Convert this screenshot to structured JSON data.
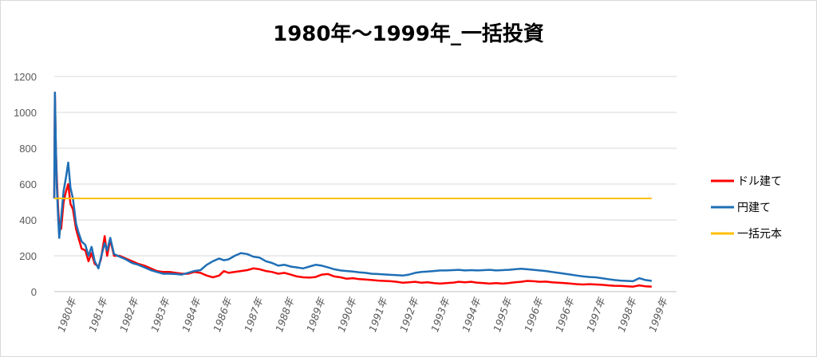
{
  "chart_data": {
    "type": "line",
    "title": "1980年～1999年_一括投資",
    "ylim": [
      0,
      1200
    ],
    "yticks": [
      "0",
      "200",
      "400",
      "600",
      "800",
      "1000",
      "1200"
    ],
    "categories": [
      "1980年",
      "1981年",
      "1982年",
      "1983年",
      "1984年",
      "1986年",
      "1987年",
      "1988年",
      "1989年",
      "1990年",
      "1991年",
      "1992年",
      "1993年",
      "1994年",
      "1995年",
      "1996年",
      "1996年",
      "1997年",
      "1998年",
      "1999年"
    ],
    "grid": true,
    "legend_position": "right",
    "series": [
      {
        "name": "ドル建て",
        "color": "#ff0000",
        "values": [
          [
            0,
            520
          ],
          [
            0.02,
            1110
          ],
          [
            0.05,
            800
          ],
          [
            0.08,
            650
          ],
          [
            0.12,
            480
          ],
          [
            0.16,
            360
          ],
          [
            0.22,
            350
          ],
          [
            0.3,
            500
          ],
          [
            0.38,
            560
          ],
          [
            0.45,
            600
          ],
          [
            0.52,
            490
          ],
          [
            0.6,
            460
          ],
          [
            0.7,
            350
          ],
          [
            0.78,
            300
          ],
          [
            0.88,
            240
          ],
          [
            1.0,
            230
          ],
          [
            1.1,
            170
          ],
          [
            1.2,
            215
          ],
          [
            1.3,
            155
          ],
          [
            1.42,
            140
          ],
          [
            1.5,
            180
          ],
          [
            1.62,
            310
          ],
          [
            1.7,
            200
          ],
          [
            1.8,
            290
          ],
          [
            1.92,
            200
          ],
          [
            2.1,
            200
          ],
          [
            2.3,
            185
          ],
          [
            2.5,
            170
          ],
          [
            2.7,
            155
          ],
          [
            2.9,
            145
          ],
          [
            3.1,
            130
          ],
          [
            3.3,
            115
          ],
          [
            3.5,
            110
          ],
          [
            3.7,
            110
          ],
          [
            3.9,
            105
          ],
          [
            4.1,
            100
          ],
          [
            4.3,
            100
          ],
          [
            4.5,
            110
          ],
          [
            4.7,
            105
          ],
          [
            4.9,
            90
          ],
          [
            5.1,
            80
          ],
          [
            5.3,
            90
          ],
          [
            5.45,
            115
          ],
          [
            5.6,
            105
          ],
          [
            5.8,
            110
          ],
          [
            6.0,
            115
          ],
          [
            6.2,
            120
          ],
          [
            6.4,
            130
          ],
          [
            6.6,
            125
          ],
          [
            6.8,
            115
          ],
          [
            7.0,
            110
          ],
          [
            7.2,
            100
          ],
          [
            7.4,
            105
          ],
          [
            7.6,
            95
          ],
          [
            7.8,
            85
          ],
          [
            8.0,
            80
          ],
          [
            8.2,
            78
          ],
          [
            8.4,
            82
          ],
          [
            8.6,
            95
          ],
          [
            8.8,
            98
          ],
          [
            9.0,
            85
          ],
          [
            9.2,
            80
          ],
          [
            9.4,
            72
          ],
          [
            9.6,
            75
          ],
          [
            9.8,
            70
          ],
          [
            10.0,
            68
          ],
          [
            10.2,
            65
          ],
          [
            10.4,
            62
          ],
          [
            10.6,
            60
          ],
          [
            10.8,
            58
          ],
          [
            11.0,
            55
          ],
          [
            11.2,
            50
          ],
          [
            11.4,
            52
          ],
          [
            11.6,
            55
          ],
          [
            11.8,
            50
          ],
          [
            12.0,
            52
          ],
          [
            12.2,
            48
          ],
          [
            12.4,
            45
          ],
          [
            12.6,
            48
          ],
          [
            12.8,
            50
          ],
          [
            13.0,
            55
          ],
          [
            13.2,
            52
          ],
          [
            13.4,
            55
          ],
          [
            13.6,
            50
          ],
          [
            13.8,
            48
          ],
          [
            14.0,
            45
          ],
          [
            14.2,
            48
          ],
          [
            14.4,
            45
          ],
          [
            14.6,
            48
          ],
          [
            14.8,
            52
          ],
          [
            15.0,
            55
          ],
          [
            15.2,
            60
          ],
          [
            15.4,
            58
          ],
          [
            15.6,
            55
          ],
          [
            15.8,
            56
          ],
          [
            16.0,
            52
          ],
          [
            16.2,
            50
          ],
          [
            16.4,
            48
          ],
          [
            16.6,
            45
          ],
          [
            16.8,
            42
          ],
          [
            17.0,
            40
          ],
          [
            17.2,
            42
          ],
          [
            17.4,
            40
          ],
          [
            17.6,
            38
          ],
          [
            17.8,
            35
          ],
          [
            18.0,
            33
          ],
          [
            18.2,
            32
          ],
          [
            18.4,
            30
          ],
          [
            18.6,
            28
          ],
          [
            18.8,
            35
          ],
          [
            19.0,
            30
          ],
          [
            19.2,
            28
          ]
        ]
      },
      {
        "name": "円建て",
        "color": "#1f6fb6",
        "values": [
          [
            0,
            520
          ],
          [
            0.02,
            1110
          ],
          [
            0.05,
            820
          ],
          [
            0.08,
            600
          ],
          [
            0.12,
            430
          ],
          [
            0.16,
            300
          ],
          [
            0.22,
            410
          ],
          [
            0.3,
            560
          ],
          [
            0.38,
            640
          ],
          [
            0.45,
            720
          ],
          [
            0.52,
            580
          ],
          [
            0.6,
            520
          ],
          [
            0.7,
            380
          ],
          [
            0.78,
            330
          ],
          [
            0.88,
            280
          ],
          [
            1.0,
            260
          ],
          [
            1.1,
            200
          ],
          [
            1.2,
            250
          ],
          [
            1.3,
            170
          ],
          [
            1.42,
            130
          ],
          [
            1.5,
            190
          ],
          [
            1.62,
            270
          ],
          [
            1.7,
            230
          ],
          [
            1.8,
            300
          ],
          [
            1.92,
            210
          ],
          [
            2.1,
            195
          ],
          [
            2.3,
            180
          ],
          [
            2.5,
            160
          ],
          [
            2.7,
            150
          ],
          [
            2.9,
            135
          ],
          [
            3.1,
            120
          ],
          [
            3.3,
            110
          ],
          [
            3.5,
            100
          ],
          [
            3.7,
            100
          ],
          [
            3.9,
            98
          ],
          [
            4.1,
            95
          ],
          [
            4.3,
            105
          ],
          [
            4.5,
            115
          ],
          [
            4.7,
            120
          ],
          [
            4.9,
            150
          ],
          [
            5.1,
            170
          ],
          [
            5.3,
            185
          ],
          [
            5.45,
            175
          ],
          [
            5.6,
            180
          ],
          [
            5.8,
            200
          ],
          [
            6.0,
            215
          ],
          [
            6.2,
            210
          ],
          [
            6.4,
            195
          ],
          [
            6.6,
            190
          ],
          [
            6.8,
            170
          ],
          [
            7.0,
            160
          ],
          [
            7.2,
            145
          ],
          [
            7.4,
            150
          ],
          [
            7.6,
            140
          ],
          [
            7.8,
            135
          ],
          [
            8.0,
            130
          ],
          [
            8.2,
            140
          ],
          [
            8.4,
            150
          ],
          [
            8.6,
            145
          ],
          [
            8.8,
            135
          ],
          [
            9.0,
            125
          ],
          [
            9.2,
            118
          ],
          [
            9.4,
            115
          ],
          [
            9.6,
            112
          ],
          [
            9.8,
            108
          ],
          [
            10.0,
            105
          ],
          [
            10.2,
            100
          ],
          [
            10.4,
            98
          ],
          [
            10.6,
            96
          ],
          [
            10.8,
            94
          ],
          [
            11.0,
            92
          ],
          [
            11.2,
            90
          ],
          [
            11.4,
            95
          ],
          [
            11.6,
            105
          ],
          [
            11.8,
            110
          ],
          [
            12.0,
            112
          ],
          [
            12.2,
            115
          ],
          [
            12.4,
            118
          ],
          [
            12.6,
            118
          ],
          [
            12.8,
            120
          ],
          [
            13.0,
            122
          ],
          [
            13.2,
            118
          ],
          [
            13.4,
            120
          ],
          [
            13.6,
            118
          ],
          [
            13.8,
            120
          ],
          [
            14.0,
            122
          ],
          [
            14.2,
            118
          ],
          [
            14.4,
            120
          ],
          [
            14.6,
            122
          ],
          [
            14.8,
            125
          ],
          [
            15.0,
            128
          ],
          [
            15.2,
            125
          ],
          [
            15.4,
            122
          ],
          [
            15.6,
            118
          ],
          [
            15.8,
            115
          ],
          [
            16.0,
            110
          ],
          [
            16.2,
            105
          ],
          [
            16.4,
            100
          ],
          [
            16.6,
            95
          ],
          [
            16.8,
            90
          ],
          [
            17.0,
            85
          ],
          [
            17.2,
            82
          ],
          [
            17.4,
            80
          ],
          [
            17.6,
            75
          ],
          [
            17.8,
            70
          ],
          [
            18.0,
            65
          ],
          [
            18.2,
            62
          ],
          [
            18.4,
            60
          ],
          [
            18.6,
            58
          ],
          [
            18.8,
            75
          ],
          [
            19.0,
            65
          ],
          [
            19.2,
            60
          ]
        ]
      },
      {
        "name": "一括元本",
        "color": "#ffc000",
        "values": [
          [
            0,
            520
          ],
          [
            19.2,
            520
          ]
        ]
      }
    ]
  }
}
